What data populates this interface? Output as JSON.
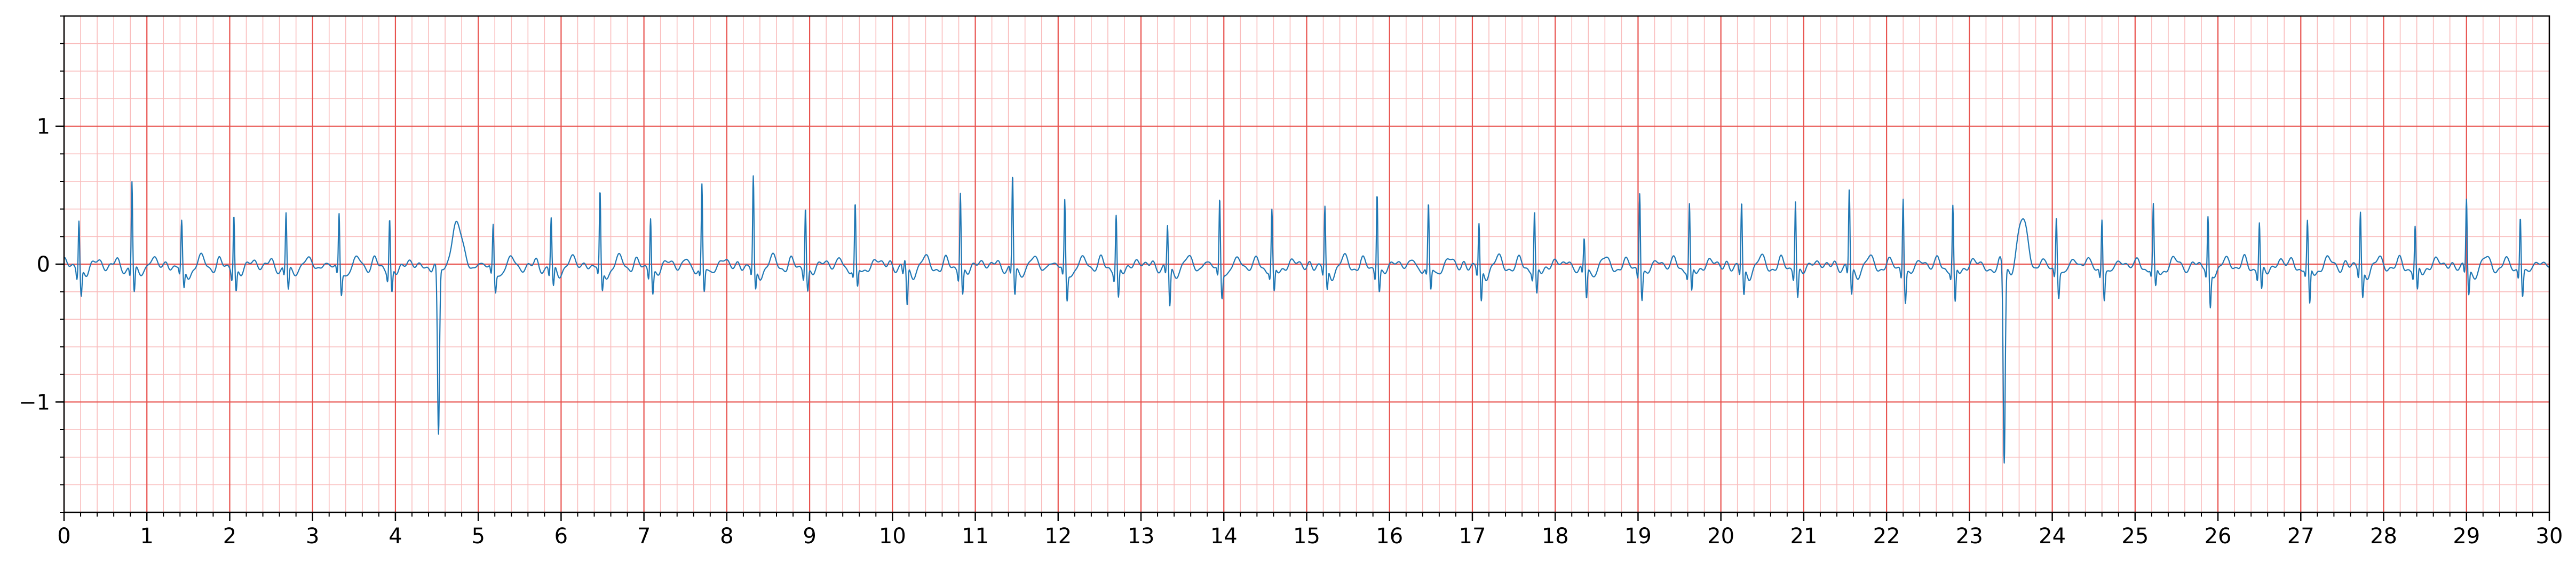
{
  "chart_data": {
    "type": "line",
    "title": "",
    "xlabel": "",
    "ylabel": "",
    "xlim": [
      0,
      30
    ],
    "ylim": [
      -1.8,
      1.8
    ],
    "x_ticks": [
      0,
      1,
      2,
      3,
      4,
      5,
      6,
      7,
      8,
      9,
      10,
      11,
      12,
      13,
      14,
      15,
      16,
      17,
      18,
      19,
      20,
      21,
      22,
      23,
      24,
      25,
      26,
      27,
      28,
      29,
      30
    ],
    "x_tick_labels": [
      "0",
      "1",
      "2",
      "3",
      "4",
      "5",
      "6",
      "7",
      "8",
      "9",
      "10",
      "11",
      "12",
      "13",
      "14",
      "15",
      "16",
      "17",
      "18",
      "19",
      "20",
      "21",
      "22",
      "23",
      "24",
      "25",
      "26",
      "27",
      "28",
      "29",
      "30"
    ],
    "y_ticks": [
      -1,
      0,
      1
    ],
    "y_tick_labels": [
      "−1",
      "0",
      "1"
    ],
    "x_minor_step": 0.2,
    "y_minor_step": 0.2,
    "grid": true,
    "major_grid_color": "#e8534f",
    "minor_grid_color": "#f9bcbc",
    "line_color": "#1f77b4",
    "series": [
      {
        "beats": [
          {
            "t": 0.18,
            "r": 0.38,
            "s": -0.18,
            "kind": "normal"
          },
          {
            "t": 0.82,
            "r": 0.63,
            "s": -0.18,
            "kind": "normal"
          },
          {
            "t": 1.42,
            "r": 0.32,
            "s": -0.15,
            "kind": "normal"
          },
          {
            "t": 2.05,
            "r": 0.42,
            "s": -0.15,
            "kind": "normal"
          },
          {
            "t": 2.68,
            "r": 0.4,
            "s": -0.16,
            "kind": "normal"
          },
          {
            "t": 3.32,
            "r": 0.4,
            "s": -0.16,
            "kind": "normal"
          },
          {
            "t": 3.93,
            "r": 0.38,
            "s": -0.17,
            "kind": "normal"
          },
          {
            "t": 4.52,
            "r": 0.05,
            "s": -1.22,
            "kind": "pvc"
          },
          {
            "t": 5.18,
            "r": 0.32,
            "s": -0.14,
            "kind": "normal"
          },
          {
            "t": 5.88,
            "r": 0.36,
            "s": -0.15,
            "kind": "normal"
          },
          {
            "t": 6.47,
            "r": 0.54,
            "s": -0.16,
            "kind": "normal"
          },
          {
            "t": 7.08,
            "r": 0.4,
            "s": -0.16,
            "kind": "normal"
          },
          {
            "t": 7.7,
            "r": 0.6,
            "s": -0.17,
            "kind": "normal"
          },
          {
            "t": 8.32,
            "r": 0.65,
            "s": -0.16,
            "kind": "normal"
          },
          {
            "t": 8.95,
            "r": 0.48,
            "s": -0.15,
            "kind": "normal"
          },
          {
            "t": 9.55,
            "r": 0.46,
            "s": -0.14,
            "kind": "normal"
          },
          {
            "t": 10.15,
            "r": 0.05,
            "s": -0.28,
            "kind": "normal"
          },
          {
            "t": 10.82,
            "r": 0.58,
            "s": -0.18,
            "kind": "normal"
          },
          {
            "t": 11.45,
            "r": 0.67,
            "s": -0.2,
            "kind": "normal"
          },
          {
            "t": 12.08,
            "r": 0.5,
            "s": -0.2,
            "kind": "normal"
          },
          {
            "t": 12.7,
            "r": 0.4,
            "s": -0.22,
            "kind": "normal"
          },
          {
            "t": 13.32,
            "r": 0.3,
            "s": -0.28,
            "kind": "normal"
          },
          {
            "t": 13.95,
            "r": 0.52,
            "s": -0.18,
            "kind": "normal"
          },
          {
            "t": 14.58,
            "r": 0.42,
            "s": -0.18,
            "kind": "normal"
          },
          {
            "t": 15.22,
            "r": 0.44,
            "s": -0.16,
            "kind": "normal"
          },
          {
            "t": 15.85,
            "r": 0.58,
            "s": -0.15,
            "kind": "normal"
          },
          {
            "t": 16.47,
            "r": 0.45,
            "s": -0.16,
            "kind": "normal"
          },
          {
            "t": 17.08,
            "r": 0.32,
            "s": -0.24,
            "kind": "normal"
          },
          {
            "t": 17.75,
            "r": 0.42,
            "s": -0.2,
            "kind": "normal"
          },
          {
            "t": 18.35,
            "r": 0.2,
            "s": -0.22,
            "kind": "normal"
          },
          {
            "t": 19.02,
            "r": 0.58,
            "s": -0.2,
            "kind": "normal"
          },
          {
            "t": 19.62,
            "r": 0.46,
            "s": -0.18,
            "kind": "normal"
          },
          {
            "t": 20.25,
            "r": 0.48,
            "s": -0.2,
            "kind": "normal"
          },
          {
            "t": 20.9,
            "r": 0.52,
            "s": -0.2,
            "kind": "normal"
          },
          {
            "t": 21.55,
            "r": 0.58,
            "s": -0.2,
            "kind": "normal"
          },
          {
            "t": 22.2,
            "r": 0.54,
            "s": -0.22,
            "kind": "normal"
          },
          {
            "t": 22.8,
            "r": 0.45,
            "s": -0.26,
            "kind": "normal"
          },
          {
            "t": 23.42,
            "r": 0.05,
            "s": -1.42,
            "kind": "pvc"
          },
          {
            "t": 24.05,
            "r": 0.4,
            "s": -0.18,
            "kind": "normal"
          },
          {
            "t": 24.6,
            "r": 0.38,
            "s": -0.2,
            "kind": "normal"
          },
          {
            "t": 25.22,
            "r": 0.44,
            "s": -0.15,
            "kind": "normal"
          },
          {
            "t": 25.88,
            "r": 0.38,
            "s": -0.26,
            "kind": "normal"
          },
          {
            "t": 26.5,
            "r": 0.35,
            "s": -0.16,
            "kind": "normal"
          },
          {
            "t": 27.08,
            "r": 0.32,
            "s": -0.28,
            "kind": "normal"
          },
          {
            "t": 27.72,
            "r": 0.42,
            "s": -0.2,
            "kind": "normal"
          },
          {
            "t": 28.38,
            "r": 0.3,
            "s": -0.18,
            "kind": "normal"
          },
          {
            "t": 29.0,
            "r": 0.5,
            "s": -0.18,
            "kind": "normal"
          },
          {
            "t": 29.65,
            "r": 0.4,
            "s": -0.18,
            "kind": "normal"
          }
        ]
      }
    ]
  }
}
